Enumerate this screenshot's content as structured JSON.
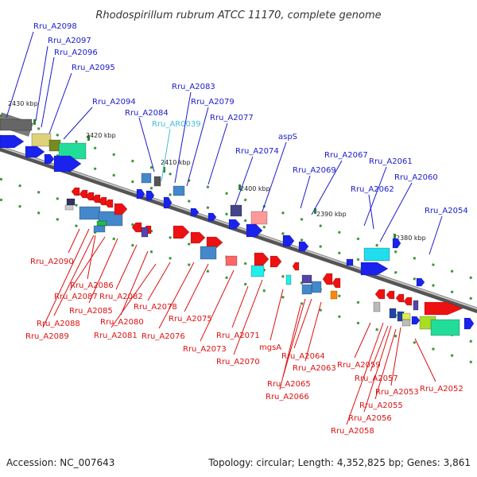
{
  "title": "Rhodospirillum rubrum ATCC 11170, complete genome",
  "accession": "Accession: NC_007643",
  "topology": "Topology: circular; Length: 4,352,825 bp; Genes: 3,861",
  "colors": {
    "forward_label": "#1a1acc",
    "reverse_label": "#dd1111",
    "rna_label": "#44bbdd",
    "backbone": "#888888",
    "tick": "#2a8a2a"
  },
  "scale_marks": [
    "2430 kbp",
    "2420 kbp",
    "2410 kbp",
    "2400 kbp",
    "2390 kbp",
    "2380 kbp"
  ],
  "top_labels": [
    "Rru_A2098",
    "Rru_A2097",
    "Rru_A2096",
    "Rru_A2095",
    "Rru_A2094",
    "Rru_A2084",
    "Rru_AR0039",
    "Rru_A2083",
    "Rru_A2079",
    "Rru_A2077",
    "Rru_A2074",
    "aspS",
    "Rru_A2069",
    "Rru_A2067",
    "Rru_A2061",
    "Rru_A2062",
    "Rru_A2060",
    "Rru_A2054"
  ],
  "bottom_labels": [
    "Rru_A2090",
    "Rru_A2086",
    "Rru_A2087",
    "Rru_A2082",
    "Rru_A2085",
    "Rru_A2078",
    "Rru_A2088",
    "Rru_A2080",
    "Rru_A2089",
    "Rru_A2081",
    "Rru_A2075",
    "Rru_A2076",
    "Rru_A2071",
    "Rru_A2073",
    "mgsA",
    "Rru_A2070",
    "Rru_A2064",
    "Rru_A2063",
    "Rru_A2065",
    "Rru_A2066",
    "Rru_A2059",
    "Rru_A2057",
    "Rru_A2053",
    "Rru_A2052",
    "Rru_A2055",
    "Rru_A2056",
    "Rru_A2058"
  ]
}
